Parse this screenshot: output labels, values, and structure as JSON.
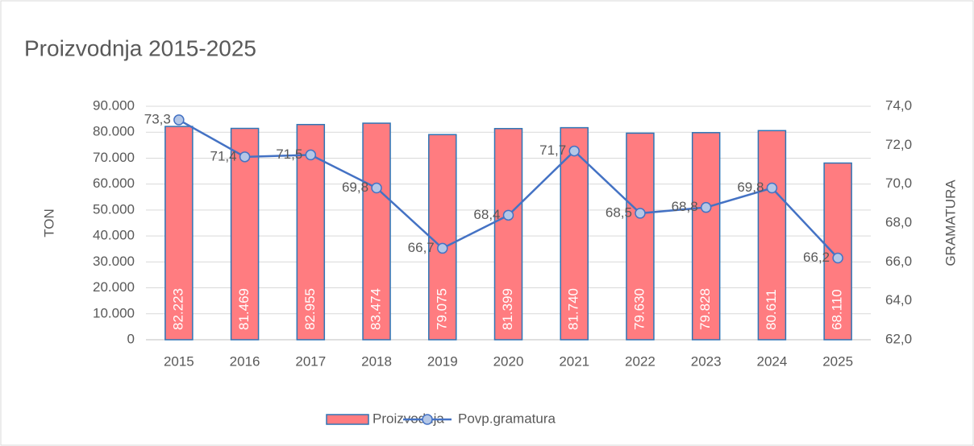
{
  "chart_data": {
    "type": "combo",
    "title": "Proizvodnja 2015-2025",
    "ylabel": "TON",
    "y2label": "GRAMATURA",
    "categories": [
      "2015",
      "2016",
      "2017",
      "2018",
      "2019",
      "2020",
      "2021",
      "2022",
      "2023",
      "2024",
      "2025"
    ],
    "series": [
      {
        "name": "Proizvodnja",
        "type": "bar",
        "color": "#ff7c80",
        "edgecolor": "#2e75b6",
        "values": [
          82223,
          81469,
          82955,
          83474,
          79075,
          81399,
          81740,
          79630,
          79828,
          80611,
          68110
        ],
        "value_labels": [
          "82.223",
          "81.469",
          "82.955",
          "83.474",
          "79.075",
          "81.399",
          "81.740",
          "79.630",
          "79.828",
          "80.611",
          "68.110"
        ]
      },
      {
        "name": "Povp.gramatura",
        "type": "line",
        "axis": "y2",
        "color": "#4472c4",
        "marker_color": "#b4c7e7",
        "values": [
          73.3,
          71.4,
          71.5,
          69.8,
          66.7,
          68.4,
          71.7,
          68.5,
          68.8,
          69.8,
          66.2
        ],
        "value_labels": [
          "73,3",
          "71,4",
          "71,5",
          "69,8",
          "66,7",
          "68,4",
          "71,7",
          "68,5",
          "68,8",
          "69,8",
          "66,2"
        ]
      }
    ],
    "ylim": [
      0,
      90000
    ],
    "yticks": [
      0,
      {
        "value": 10000,
        "label": "10.000"
      },
      {
        "value": 20000,
        "label": "20.000"
      },
      {
        "value": 30000,
        "label": "30.000"
      },
      {
        "value": 40000,
        "label": "40.000"
      },
      {
        "value": 50000,
        "label": "50.000"
      },
      {
        "value": 60000,
        "label": "60.000"
      },
      {
        "value": 70000,
        "label": "70.000"
      },
      {
        "value": 80000,
        "label": "80.000"
      },
      {
        "value": 90000,
        "label": "90.000"
      }
    ],
    "y2lim": [
      62,
      74
    ],
    "y2ticks": [
      {
        "value": 62,
        "label": "62,0"
      },
      {
        "value": 64,
        "label": "64,0"
      },
      {
        "value": 66,
        "label": "66,0"
      },
      {
        "value": 68,
        "label": "68,0"
      },
      {
        "value": 70,
        "label": "70,0"
      },
      {
        "value": 72,
        "label": "72,0"
      },
      {
        "value": 74,
        "label": "74,0"
      }
    ],
    "grid": true,
    "legend": "bottom"
  }
}
